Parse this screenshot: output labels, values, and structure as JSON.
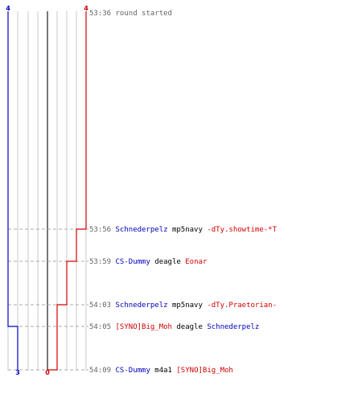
{
  "team_colors": {
    "blue": "#0000c0",
    "red": "#d00000",
    "time": "#666666",
    "weapon": "#000000"
  },
  "scores": {
    "blue_start": "4",
    "red_start": "4",
    "blue_end": "3",
    "red_end": "0"
  },
  "events": [
    {
      "time": "53:36",
      "text": "round started"
    },
    {
      "time": "53:56",
      "killer": "Schnederpelz",
      "killer_team": "blue",
      "weapon": "mp5navy",
      "victim": "-dTy.showtime-*T",
      "victim_team": "red"
    },
    {
      "time": "53:59",
      "killer": "CS-Dummy",
      "killer_team": "blue",
      "weapon": "deagle",
      "victim": "Eonar",
      "victim_team": "red"
    },
    {
      "time": "54:03",
      "killer": "Schnederpelz",
      "killer_team": "blue",
      "weapon": "mp5navy",
      "victim": "-dTy.Praetorian-",
      "victim_team": "red"
    },
    {
      "time": "54:05",
      "killer": "[SYNO]Big_Moh",
      "killer_team": "red",
      "weapon": "deagle",
      "victim": "Schnederpelz",
      "victim_team": "blue"
    },
    {
      "time": "54:09",
      "killer": "CS-Dummy",
      "killer_team": "blue",
      "weapon": "m4a1",
      "victim": "[SYNO]Big_Moh",
      "victim_team": "red"
    }
  ]
}
